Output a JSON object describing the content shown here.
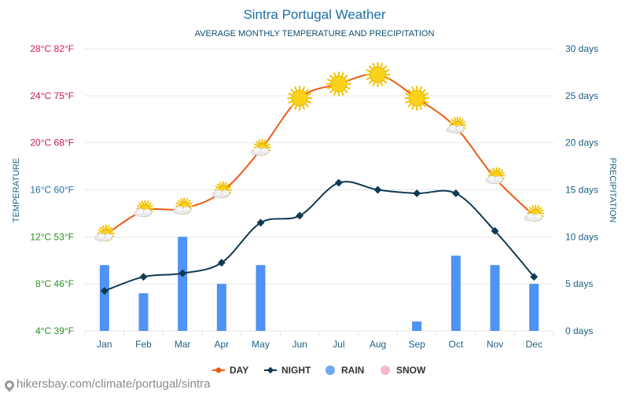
{
  "chart_data": {
    "type": "line",
    "title": "Sintra Portugal Weather",
    "subtitle": "AVERAGE MONTHLY TEMPERATURE AND PRECIPITATION",
    "ylabel_left": "TEMPERATURE",
    "ylabel_right": "PRECIPITATION",
    "categories": [
      "Jan",
      "Feb",
      "Mar",
      "Apr",
      "May",
      "Jun",
      "Jul",
      "Aug",
      "Sep",
      "Oct",
      "Nov",
      "Dec"
    ],
    "left_ticks": [
      {
        "value": 4,
        "label": "4°C 39°F"
      },
      {
        "value": 8,
        "label": "8°C 46°F"
      },
      {
        "value": 12,
        "label": "12°C 53°F"
      },
      {
        "value": 16,
        "label": "16°C 60°F"
      },
      {
        "value": 20,
        "label": "20°C 68°F"
      },
      {
        "value": 24,
        "label": "24°C 75°F"
      },
      {
        "value": 28,
        "label": "28°C 82°F"
      }
    ],
    "right_ticks": [
      {
        "value": 0,
        "label": "0 days"
      },
      {
        "value": 5,
        "label": "5 days"
      },
      {
        "value": 10,
        "label": "10 days"
      },
      {
        "value": 15,
        "label": "15 days"
      },
      {
        "value": 20,
        "label": "20 days"
      },
      {
        "value": 25,
        "label": "25 days"
      },
      {
        "value": 30,
        "label": "30 days"
      }
    ],
    "ylim_left": [
      4,
      28
    ],
    "ylim_right": [
      0,
      30
    ],
    "series": [
      {
        "name": "DAY",
        "unit": "°C",
        "color": "#ee5a13",
        "values": [
          12.1,
          14.2,
          14.4,
          15.8,
          19.4,
          23.8,
          25.0,
          25.8,
          23.8,
          21.3,
          17.0,
          13.8
        ]
      },
      {
        "name": "NIGHT",
        "unit": "°C",
        "color": "#0f3a52",
        "values": [
          7.4,
          8.6,
          8.9,
          9.8,
          13.2,
          13.8,
          16.6,
          16.0,
          15.7,
          15.7,
          12.5,
          8.6
        ]
      },
      {
        "name": "RAIN",
        "unit": "days",
        "color": "#4e93f5",
        "values": [
          7,
          4,
          10,
          5,
          7,
          0,
          0,
          0,
          1,
          8,
          7,
          5
        ]
      },
      {
        "name": "SNOW",
        "unit": "days",
        "color": "#f7b9c8",
        "values": [
          0,
          0,
          0,
          0,
          0,
          0,
          0,
          0,
          0,
          0,
          0,
          0
        ]
      }
    ],
    "weather_icons": [
      "partly-cloudy",
      "partly-cloudy",
      "partly-cloudy",
      "partly-cloudy",
      "partly-cloudy",
      "sunny",
      "sunny",
      "sunny",
      "sunny",
      "partly-cloudy",
      "partly-cloudy",
      "partly-cloudy"
    ],
    "legend": [
      {
        "label": "DAY",
        "color": "#ee5a13",
        "marker": "line-circle"
      },
      {
        "label": "NIGHT",
        "color": "#0f3a52",
        "marker": "line-diamond"
      },
      {
        "label": "RAIN",
        "color": "#6ea8f0",
        "marker": "circle"
      },
      {
        "label": "SNOW",
        "color": "#f7b9c8",
        "marker": "circle"
      }
    ],
    "legend_position": "bottom-center",
    "grid": true
  },
  "colors": {
    "title": "#1d6fa3",
    "subtitle": "#0e4d6e",
    "left_tick_colors": [
      "#2e8b22",
      "#2e8b22",
      "#2e8b22",
      "#1f6fa3",
      "#c8174a",
      "#c8174a",
      "#e0145c"
    ],
    "right_tick": "#1f5f82",
    "axis_title": "#1f5f82",
    "month_label": "#1f5f82",
    "grid": "#e6e6e6"
  },
  "footer": {
    "url": "hikersbay.com/climate/portugal/sintra"
  }
}
